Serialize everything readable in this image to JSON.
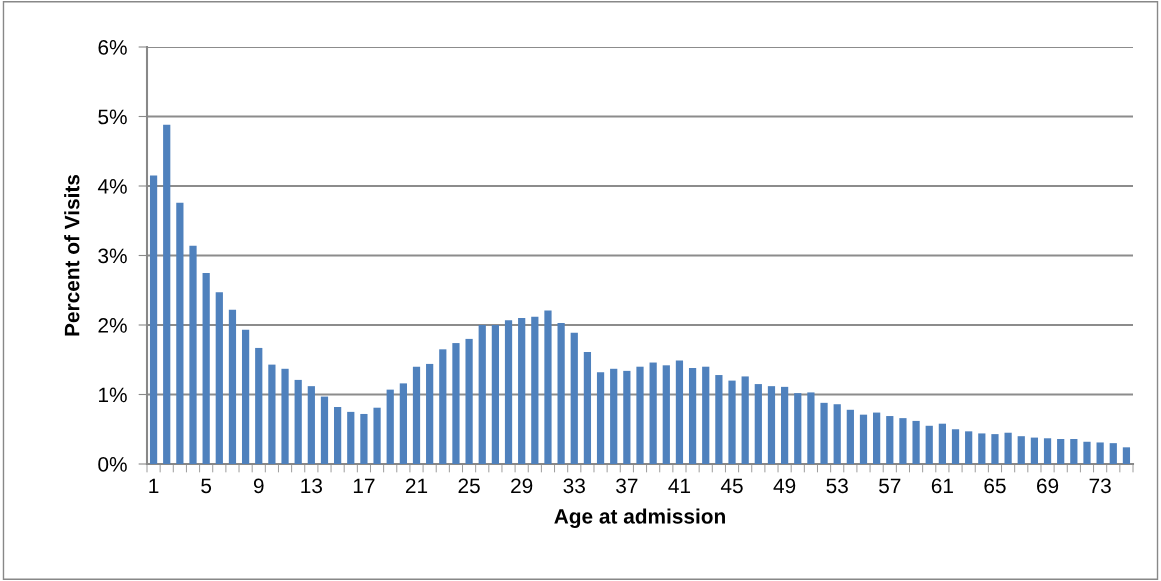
{
  "chart_data": {
    "type": "bar",
    "xlabel": "Age at admission",
    "ylabel": "Percent of Visits",
    "categories": [
      "1",
      null,
      null,
      null,
      "5",
      null,
      null,
      null,
      "9",
      null,
      null,
      null,
      "13",
      null,
      null,
      null,
      "17",
      null,
      null,
      null,
      "21",
      null,
      null,
      null,
      "25",
      null,
      null,
      null,
      "29",
      null,
      null,
      null,
      "33",
      null,
      null,
      null,
      "37",
      null,
      null,
      null,
      "41",
      null,
      null,
      null,
      "45",
      null,
      null,
      null,
      "49",
      null,
      null,
      null,
      "53",
      null,
      null,
      null,
      "57",
      null,
      null,
      null,
      "61",
      null,
      null,
      null,
      "65",
      null,
      null,
      null,
      "69",
      null,
      null,
      null,
      "73",
      null,
      null
    ],
    "values": [
      4.15,
      4.88,
      3.76,
      3.14,
      2.75,
      2.47,
      2.22,
      1.93,
      1.67,
      1.43,
      1.37,
      1.21,
      1.12,
      0.97,
      0.82,
      0.75,
      0.72,
      0.81,
      1.07,
      1.16,
      1.4,
      1.44,
      1.65,
      1.74,
      1.8,
      2.0,
      2.0,
      2.07,
      2.1,
      2.12,
      2.21,
      2.03,
      1.89,
      1.61,
      1.32,
      1.37,
      1.34,
      1.4,
      1.46,
      1.42,
      1.49,
      1.38,
      1.4,
      1.28,
      1.2,
      1.26,
      1.15,
      1.12,
      1.11,
      1.02,
      1.03,
      0.88,
      0.86,
      0.78,
      0.71,
      0.74,
      0.69,
      0.66,
      0.62,
      0.55,
      0.58,
      0.5,
      0.47,
      0.44,
      0.43,
      0.45,
      0.4,
      0.38,
      0.37,
      0.36,
      0.36,
      0.32,
      0.31,
      0.3,
      0.24
    ],
    "color": "#4f81bd",
    "ylim": [
      0,
      6
    ],
    "yticks": [
      {
        "value": 0,
        "label": "0%"
      },
      {
        "value": 1,
        "label": "1%"
      },
      {
        "value": 2,
        "label": "2%"
      },
      {
        "value": 3,
        "label": "3%"
      },
      {
        "value": 4,
        "label": "4%"
      },
      {
        "value": 5,
        "label": "5%"
      },
      {
        "value": 6,
        "label": "6%"
      }
    ],
    "grid": "y",
    "legend": false
  }
}
